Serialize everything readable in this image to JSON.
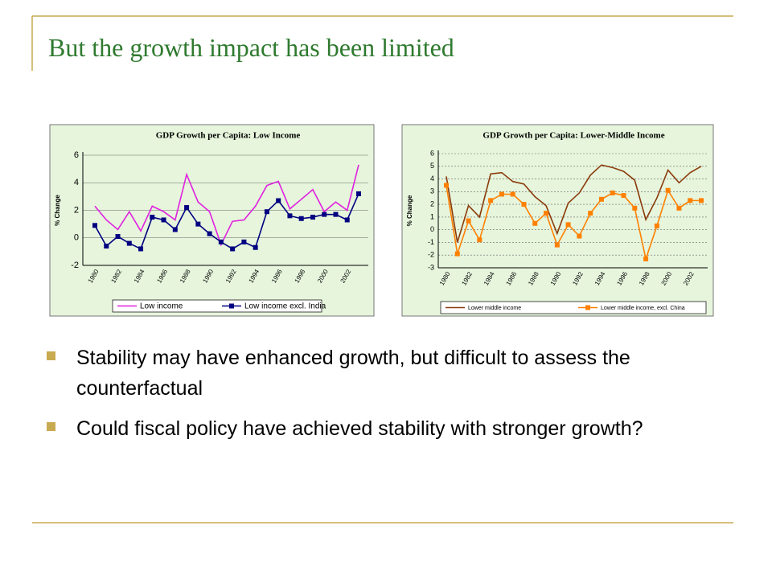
{
  "title": "But the growth impact has been limited",
  "bullets": [
    "Stability may have enhanced growth, but difficult to assess the counterfactual",
    "Could fiscal policy have achieved stability with stronger growth?"
  ],
  "chart_data": [
    {
      "type": "line",
      "title": "GDP Growth per Capita: Low Income",
      "ylabel": "% Change",
      "categories": [
        "1980",
        null,
        "1982",
        null,
        "1984",
        null,
        "1986",
        null,
        "1988",
        null,
        "1990",
        null,
        "1992",
        null,
        "1994",
        null,
        "1996",
        null,
        "1998",
        null,
        "2000",
        null,
        "2002",
        null
      ],
      "ylim": [
        -2,
        6
      ],
      "yticks": [
        -2,
        0,
        2,
        4,
        6
      ],
      "grid": true,
      "legend": "bottom",
      "series": [
        {
          "name": "Low income",
          "color": "#e020e0",
          "marker": "none",
          "values": [
            2.3,
            1.3,
            0.6,
            1.9,
            0.5,
            2.3,
            1.9,
            1.3,
            4.6,
            2.6,
            1.9,
            -0.5,
            1.2,
            1.3,
            2.3,
            3.8,
            4.1,
            2.1,
            2.8,
            3.5,
            1.9,
            2.6,
            2.0,
            5.3
          ]
        },
        {
          "name": "Low income excl. India",
          "color": "#000080",
          "marker": "square",
          "values": [
            0.9,
            -0.6,
            0.1,
            -0.4,
            -0.8,
            1.5,
            1.3,
            0.6,
            2.2,
            1.0,
            0.3,
            -0.3,
            -0.8,
            -0.3,
            -0.7,
            1.9,
            2.7,
            1.6,
            1.4,
            1.5,
            1.7,
            1.7,
            1.3,
            3.2
          ]
        }
      ]
    },
    {
      "type": "line",
      "title": "GDP Growth per Capita: Lower-Middle Income",
      "ylabel": "% Change",
      "categories": [
        "1980",
        null,
        "1982",
        null,
        "1984",
        null,
        "1986",
        null,
        "1988",
        null,
        "1990",
        null,
        "1992",
        null,
        "1994",
        null,
        "1996",
        null,
        "1998",
        null,
        "2000",
        null,
        "2002",
        null
      ],
      "ylim": [
        -3,
        6
      ],
      "yticks": [
        -3,
        -2,
        -1,
        0,
        1,
        2,
        3,
        4,
        5,
        6
      ],
      "grid": true,
      "legend": "bottom",
      "series": [
        {
          "name": "Lower middle income",
          "color": "#8b3a0a",
          "marker": "none",
          "values": [
            4.2,
            -1.0,
            1.9,
            1.0,
            4.4,
            4.5,
            3.8,
            3.6,
            2.6,
            1.9,
            -0.3,
            2.1,
            2.9,
            4.3,
            5.1,
            4.9,
            4.6,
            3.9,
            0.8,
            2.5,
            4.7,
            3.7,
            4.5,
            5.0
          ]
        },
        {
          "name": "Lower middle income, excl. China",
          "color": "#ff8000",
          "marker": "square",
          "values": [
            3.5,
            -1.9,
            0.7,
            -0.8,
            2.3,
            2.8,
            2.8,
            2.0,
            0.5,
            1.3,
            -1.2,
            0.4,
            -0.5,
            1.3,
            2.4,
            2.9,
            2.7,
            1.7,
            -2.3,
            0.3,
            3.1,
            1.7,
            2.3,
            2.3
          ]
        }
      ]
    }
  ]
}
